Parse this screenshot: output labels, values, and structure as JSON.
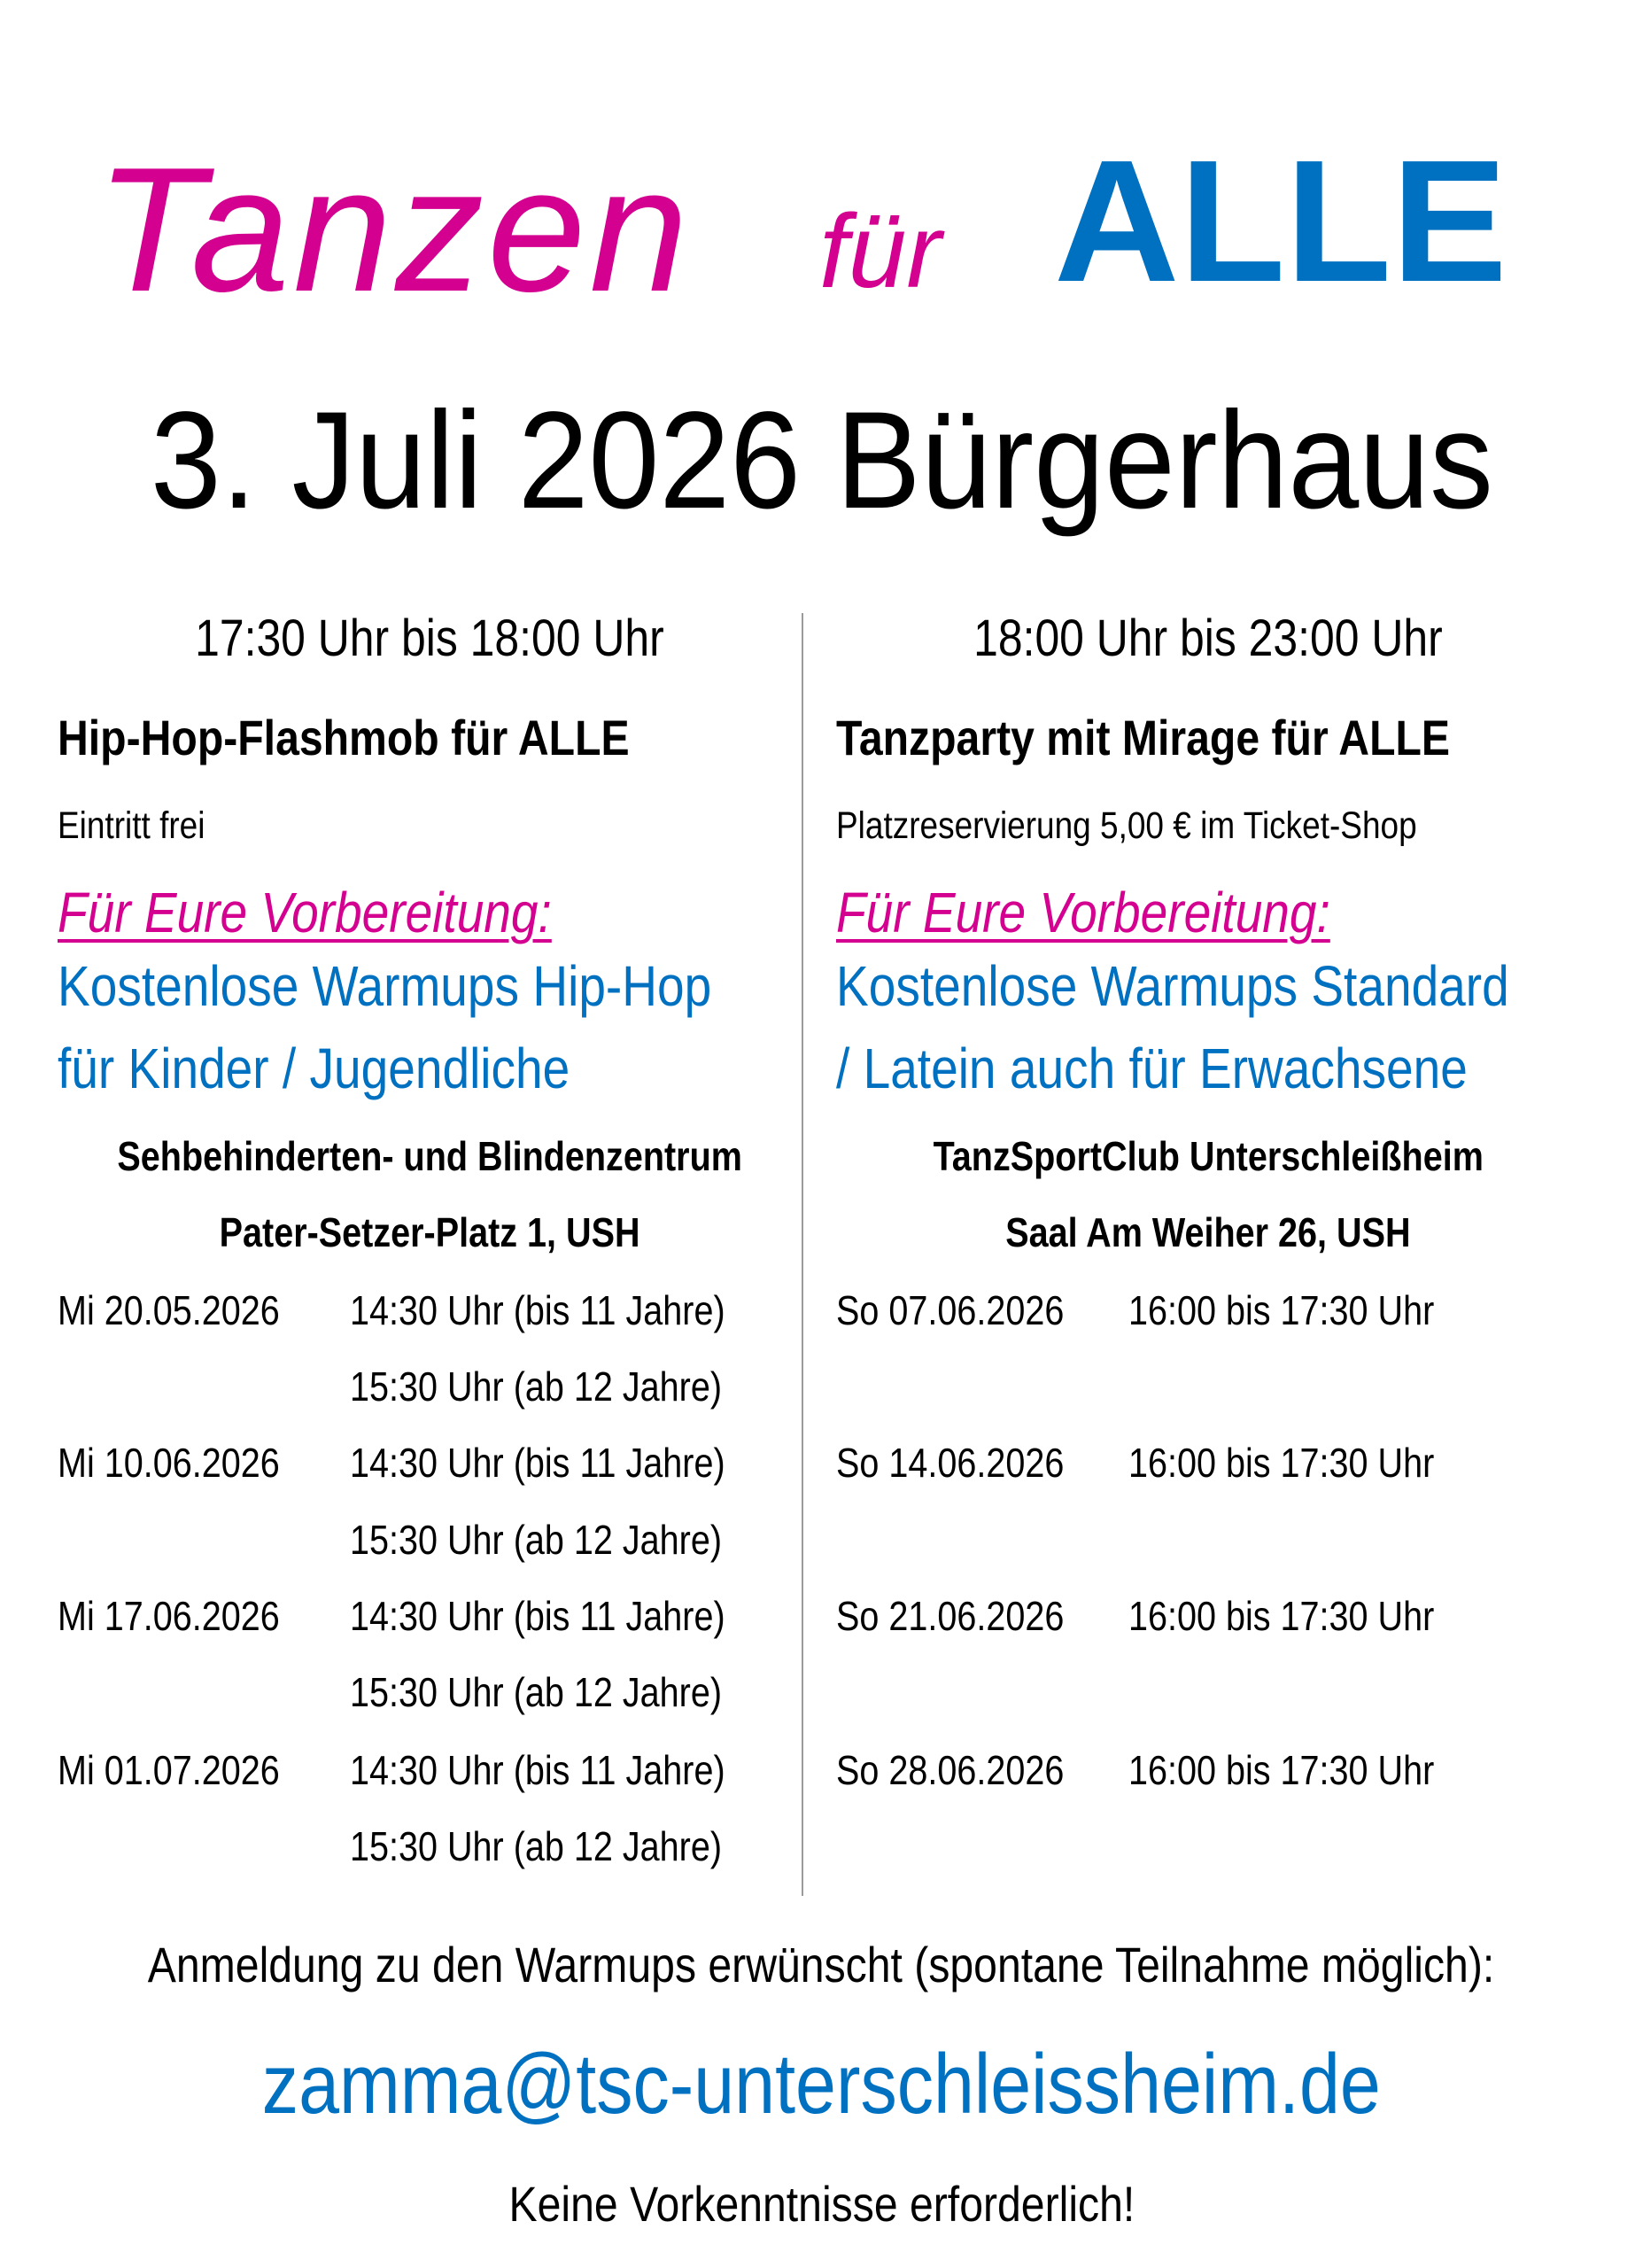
{
  "title": {
    "word1": "Tanzen",
    "word2": "für",
    "word3": "ALLE",
    "colors": {
      "tanzen": "#D4008F",
      "alle": "#0070C0"
    }
  },
  "date_line": "3. Juli 2026 Bürgerhaus",
  "left": {
    "time": "17:30 Uhr bis 18:00 Uhr",
    "event": "Hip-Hop-Flashmob für ALLE",
    "note": "Eintritt frei",
    "prep_label": "Für Eure Vorbereitung:",
    "warmup_line1": "Kostenlose Warmups Hip-Hop",
    "warmup_line2": "für Kinder / Jugendliche",
    "venue_line1": "Sehbehinderten- und Blindenzentrum",
    "venue_line2": "Pater-Setzer-Platz 1, USH",
    "schedule": [
      {
        "date": "Mi 20.05.2026",
        "time1": "14:30 Uhr (bis 11 Jahre)",
        "time2": "15:30 Uhr (ab 12 Jahre)"
      },
      {
        "date": "Mi 10.06.2026",
        "time1": "14:30 Uhr (bis 11 Jahre)",
        "time2": "15:30 Uhr (ab 12 Jahre)"
      },
      {
        "date": "Mi 17.06.2026",
        "time1": "14:30 Uhr (bis 11 Jahre)",
        "time2": "15:30 Uhr (ab 12 Jahre)"
      },
      {
        "date": "Mi 01.07.2026",
        "time1": "14:30 Uhr (bis 11 Jahre)",
        "time2": "15:30 Uhr (ab 12 Jahre)"
      }
    ]
  },
  "right": {
    "time": "18:00 Uhr bis 23:00 Uhr",
    "event": "Tanzparty mit Mirage für ALLE",
    "note": "Platzreservierung 5,00 € im Ticket-Shop",
    "prep_label": "Für Eure Vorbereitung:",
    "warmup_line1": "Kostenlose Warmups Standard",
    "warmup_line2": "/ Latein auch für Erwachsene",
    "venue_line1": "TanzSportClub Unterschleißheim",
    "venue_line2": "Saal Am Weiher 26, USH",
    "schedule": [
      {
        "date": "So 07.06.2026",
        "time": "16:00 bis 17:30 Uhr"
      },
      {
        "date": "So 14.06.2026",
        "time": "16:00 bis 17:30 Uhr"
      },
      {
        "date": "So 21.06.2026",
        "time": "16:00 bis 17:30 Uhr"
      },
      {
        "date": "So 28.06.2026",
        "time": "16:00 bis 17:30 Uhr"
      }
    ]
  },
  "footer": {
    "registration": "Anmeldung zu den Warmups erwünscht (spontane Teilnahme möglich):",
    "email": "zamma@tsc-unterschleissheim.de",
    "note": "Keine Vorkenntnisse erforderlich!"
  }
}
